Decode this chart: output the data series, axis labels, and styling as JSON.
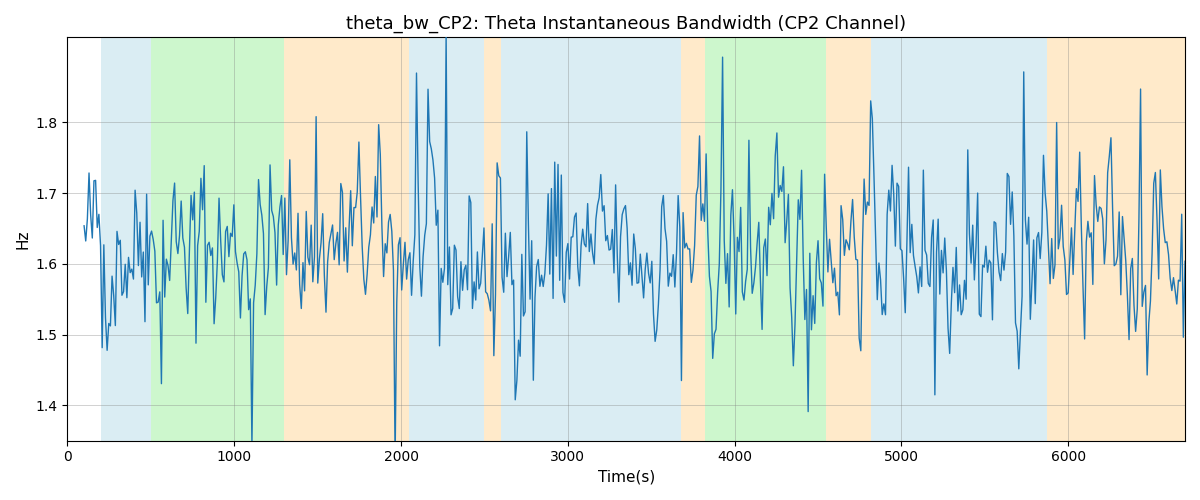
{
  "title": "theta_bw_CP2: Theta Instantaneous Bandwidth (CP2 Channel)",
  "xlabel": "Time(s)",
  "ylabel": "Hz",
  "xlim": [
    0,
    6700
  ],
  "ylim": [
    1.35,
    1.92
  ],
  "background_bands": [
    {
      "xmin": 200,
      "xmax": 500,
      "color": "#add8e6",
      "alpha": 0.45
    },
    {
      "xmin": 500,
      "xmax": 1300,
      "color": "#90ee90",
      "alpha": 0.45
    },
    {
      "xmin": 1300,
      "xmax": 2050,
      "color": "#ffd9a0",
      "alpha": 0.55
    },
    {
      "xmin": 2050,
      "xmax": 2500,
      "color": "#add8e6",
      "alpha": 0.45
    },
    {
      "xmin": 2500,
      "xmax": 2600,
      "color": "#ffd9a0",
      "alpha": 0.55
    },
    {
      "xmin": 2600,
      "xmax": 3680,
      "color": "#add8e6",
      "alpha": 0.45
    },
    {
      "xmin": 3680,
      "xmax": 3820,
      "color": "#ffd9a0",
      "alpha": 0.55
    },
    {
      "xmin": 3820,
      "xmax": 4550,
      "color": "#90ee90",
      "alpha": 0.45
    },
    {
      "xmin": 4550,
      "xmax": 4820,
      "color": "#ffd9a0",
      "alpha": 0.55
    },
    {
      "xmin": 4820,
      "xmax": 5870,
      "color": "#add8e6",
      "alpha": 0.45
    },
    {
      "xmin": 5870,
      "xmax": 6150,
      "color": "#ffd9a0",
      "alpha": 0.55
    },
    {
      "xmin": 6150,
      "xmax": 6700,
      "color": "#ffd9a0",
      "alpha": 0.55
    }
  ],
  "line_color": "#1f77b4",
  "line_width": 1.0,
  "seed": 42,
  "n_points": 670,
  "x_start": 100,
  "x_end": 6700,
  "base_value": 1.615,
  "noise_scale": 0.065,
  "ar_coeff": 0.55
}
